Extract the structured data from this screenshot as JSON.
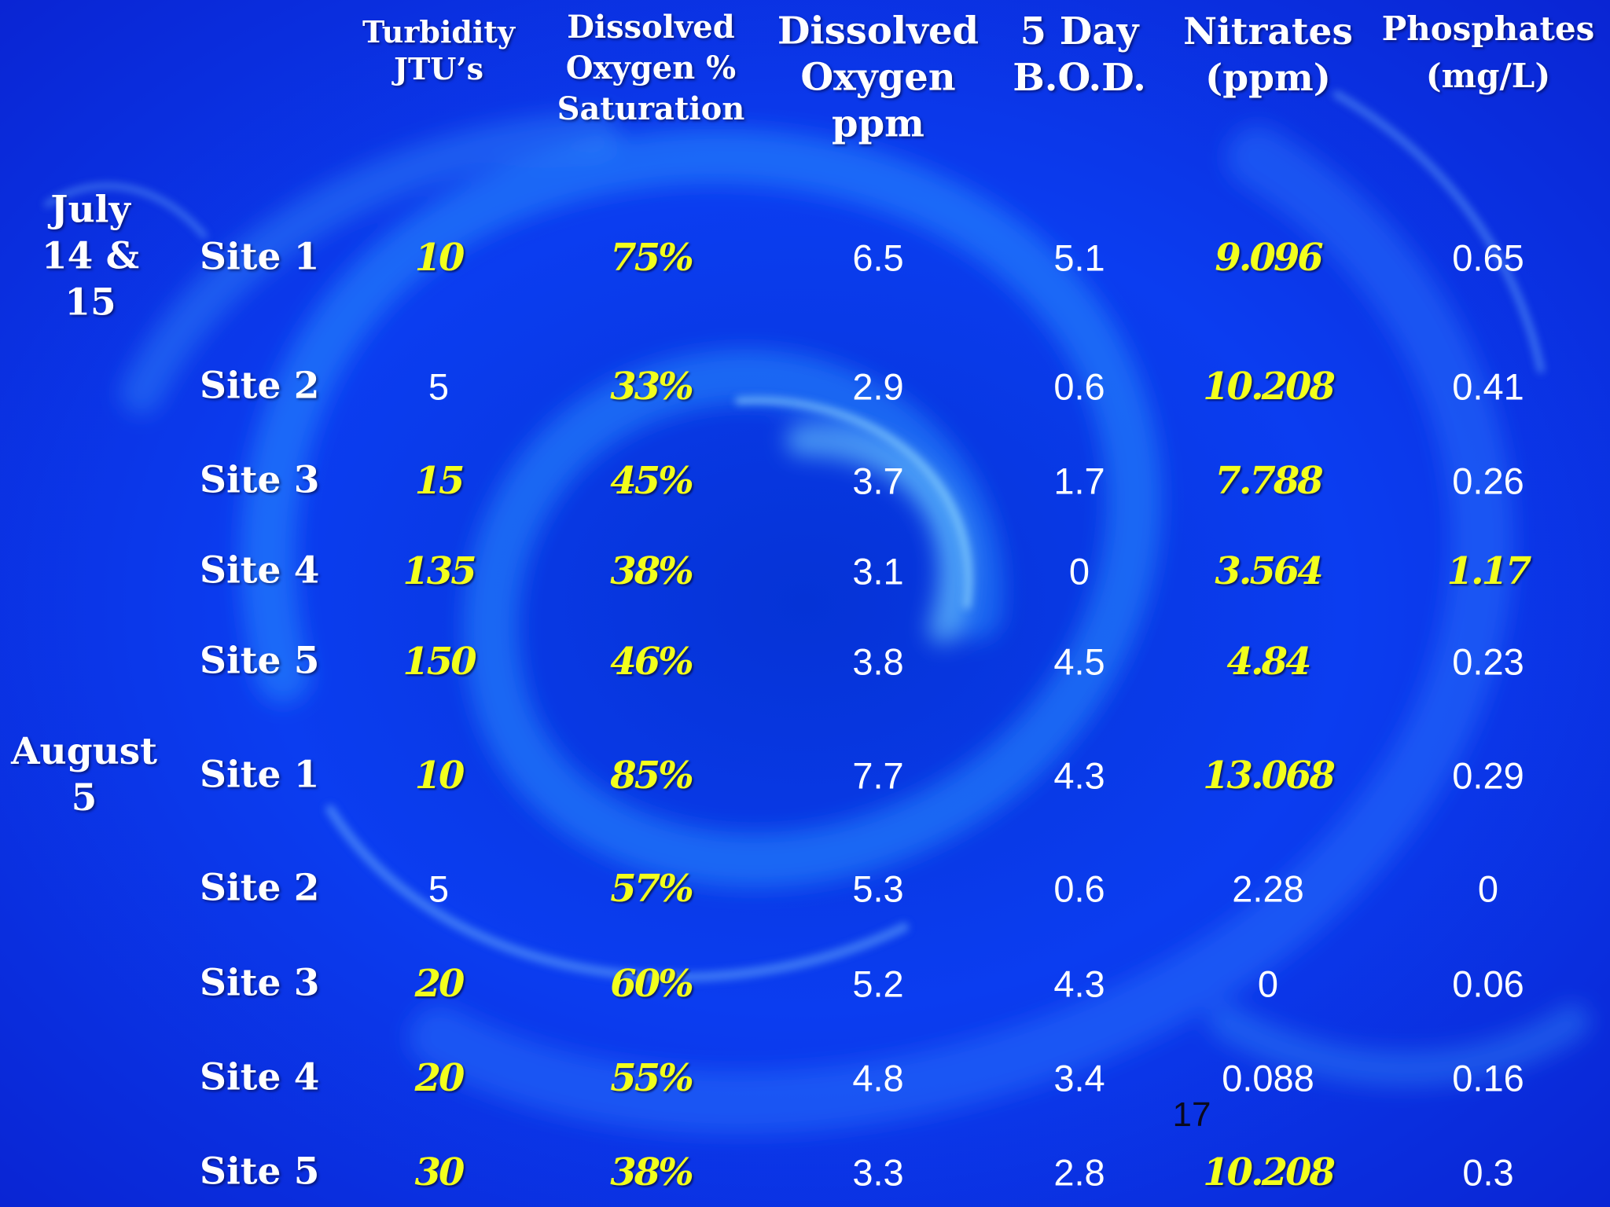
{
  "headers": [
    {
      "lines": [
        "Turbidity",
        "JTU’s"
      ]
    },
    {
      "lines": [
        "Dissolved",
        "Oxygen %",
        "Saturation"
      ]
    },
    {
      "lines": [
        "Dissolved",
        "Oxygen",
        "ppm"
      ]
    },
    {
      "lines": [
        "5 Day",
        "B.O.D."
      ]
    },
    {
      "lines": [
        "Nitrates",
        "(ppm)"
      ]
    },
    {
      "lines": [
        "Phosphates",
        "(mg/L)"
      ]
    }
  ],
  "groups": [
    {
      "date_lines": [
        "July",
        "14 &",
        "15"
      ],
      "rows": [
        {
          "site": "Site 1",
          "values": [
            "10",
            "75%",
            "6.5",
            "5.1",
            "9.096",
            "0.65"
          ],
          "highlight": [
            true,
            true,
            false,
            false,
            true,
            false
          ]
        },
        {
          "site": "Site 2",
          "values": [
            "5",
            "33%",
            "2.9",
            "0.6",
            "10.208",
            "0.41"
          ],
          "highlight": [
            false,
            true,
            false,
            false,
            true,
            false
          ]
        },
        {
          "site": "Site 3",
          "values": [
            "15",
            "45%",
            "3.7",
            "1.7",
            "7.788",
            "0.26"
          ],
          "highlight": [
            true,
            true,
            false,
            false,
            true,
            false
          ]
        },
        {
          "site": "Site 4",
          "values": [
            "135",
            "38%",
            "3.1",
            "0",
            "3.564",
            "1.17"
          ],
          "highlight": [
            true,
            true,
            false,
            false,
            true,
            true
          ]
        },
        {
          "site": "Site 5",
          "values": [
            "150",
            "46%",
            "3.8",
            "4.5",
            "4.84",
            "0.23"
          ],
          "highlight": [
            true,
            true,
            false,
            false,
            true,
            false
          ]
        }
      ]
    },
    {
      "date_lines": [
        "August",
        "5"
      ],
      "rows": [
        {
          "site": "Site 1",
          "values": [
            "10",
            "85%",
            "7.7",
            "4.3",
            "13.068",
            "0.29"
          ],
          "highlight": [
            true,
            true,
            false,
            false,
            true,
            false
          ]
        },
        {
          "site": "Site 2",
          "values": [
            "5",
            "57%",
            "5.3",
            "0.6",
            "2.28",
            "0"
          ],
          "highlight": [
            false,
            true,
            false,
            false,
            false,
            false
          ]
        },
        {
          "site": "Site 3",
          "values": [
            "20",
            "60%",
            "5.2",
            "4.3",
            "0",
            "0.06"
          ],
          "highlight": [
            true,
            true,
            false,
            false,
            false,
            false
          ]
        },
        {
          "site": "Site 4",
          "values": [
            "20",
            "55%",
            "4.8",
            "3.4",
            "0.088",
            "0.16"
          ],
          "highlight": [
            true,
            true,
            false,
            false,
            false,
            false
          ]
        },
        {
          "site": "Site 5",
          "values": [
            "30",
            "38%",
            "3.3",
            "2.8",
            "10.208",
            "0.3"
          ],
          "highlight": [
            true,
            true,
            false,
            false,
            true,
            false
          ]
        }
      ]
    }
  ],
  "page_number": "17",
  "colors": {
    "background": "#0a2ee0",
    "text": "#ffffff",
    "highlight": "#f2ff1c",
    "page_number": "#0a0a1e"
  }
}
